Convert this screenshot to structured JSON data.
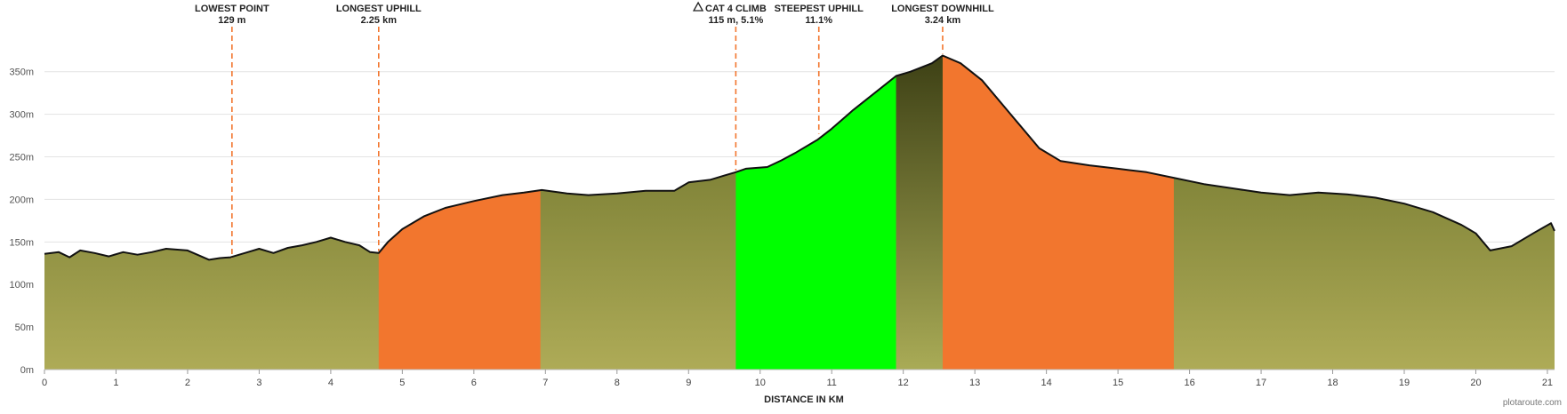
{
  "chart_data": {
    "type": "area",
    "xlabel": "DISTANCE IN KM",
    "ylabel": "",
    "xlim": [
      0,
      21.1
    ],
    "ylim": [
      0,
      380
    ],
    "x_ticks": [
      0,
      1,
      2,
      3,
      4,
      5,
      6,
      7,
      8,
      9,
      10,
      11,
      12,
      13,
      14,
      15,
      16,
      17,
      18,
      19,
      20,
      21
    ],
    "y_ticks": [
      {
        "value": 0,
        "label": "0m"
      },
      {
        "value": 50,
        "label": "50m"
      },
      {
        "value": 100,
        "label": "100m"
      },
      {
        "value": 150,
        "label": "150m"
      },
      {
        "value": 200,
        "label": "200m"
      },
      {
        "value": 250,
        "label": "250m"
      },
      {
        "value": 300,
        "label": "300m"
      },
      {
        "value": 350,
        "label": "350m"
      }
    ],
    "grid": true,
    "profile": {
      "x": [
        0,
        0.2,
        0.35,
        0.5,
        0.7,
        0.9,
        1.1,
        1.3,
        1.5,
        1.7,
        2.0,
        2.3,
        2.45,
        2.6,
        2.8,
        3.0,
        3.2,
        3.4,
        3.6,
        3.8,
        4.0,
        4.2,
        4.4,
        4.55,
        4.67,
        4.8,
        5.0,
        5.3,
        5.6,
        6.0,
        6.4,
        6.7,
        6.95,
        7.3,
        7.6,
        8.0,
        8.4,
        8.8,
        9.0,
        9.3,
        9.5,
        9.66,
        9.8,
        10.1,
        10.3,
        10.5,
        10.8,
        11.0,
        11.3,
        11.6,
        11.9,
        12.1,
        12.4,
        12.55,
        12.8,
        13.1,
        13.5,
        13.9,
        14.2,
        14.6,
        15.0,
        15.4,
        15.8,
        16.2,
        16.6,
        17.0,
        17.4,
        17.8,
        18.2,
        18.6,
        19.0,
        19.4,
        19.8,
        20.0,
        20.2,
        20.5,
        20.8,
        21.05,
        21.1
      ],
      "y": [
        136,
        138,
        132,
        140,
        137,
        133,
        138,
        135,
        138,
        142,
        140,
        129,
        131,
        132,
        137,
        142,
        137,
        143,
        146,
        150,
        155,
        150,
        146,
        138,
        137,
        150,
        165,
        180,
        190,
        198,
        205,
        208,
        211,
        207,
        205,
        207,
        210,
        210,
        220,
        223,
        228,
        232,
        236,
        238,
        246,
        255,
        270,
        283,
        305,
        325,
        345,
        350,
        360,
        369,
        360,
        340,
        300,
        260,
        245,
        240,
        236,
        232,
        225,
        218,
        213,
        208,
        205,
        208,
        206,
        202,
        195,
        185,
        170,
        160,
        140,
        145,
        160,
        172,
        163
      ]
    },
    "segments": [
      {
        "name": "Longest Uphill",
        "from": 4.67,
        "to": 6.93,
        "color": "#f2762e"
      },
      {
        "name": "Steepest Uphill",
        "from": 9.66,
        "to": 11.9,
        "color": "#00ff00"
      },
      {
        "name": "Longest Downhill",
        "from": 12.55,
        "to": 15.78,
        "color": "#f2762e"
      }
    ],
    "summit_band": {
      "from": 11.9,
      "to": 12.55,
      "color_top": "#3a3d13",
      "color_bottom": "#a9ab56"
    },
    "base_gradient": {
      "top": "#646b25",
      "bottom": "#aeab57"
    },
    "marker_color": "#f2762e",
    "markers": [
      {
        "x": 2.62,
        "y": 129,
        "label1": "LOWEST POINT",
        "label2": "129 m",
        "icon": ""
      },
      {
        "x": 4.67,
        "y": 137,
        "label1": "LONGEST UPHILL",
        "label2": "2.25 km",
        "icon": ""
      },
      {
        "x": 9.66,
        "y": 232,
        "label1": "CAT 4 CLIMB",
        "label2": "115 m, 5.1%",
        "icon": "mountain-icon"
      },
      {
        "x": 10.82,
        "y": 275,
        "label1": "STEEPEST UPHILL",
        "label2": "11.1%",
        "icon": ""
      },
      {
        "x": 12.55,
        "y": 369,
        "label1": "LONGEST DOWNHILL",
        "label2": "3.24 km",
        "icon": ""
      }
    ],
    "credit": "plotaroute.com"
  }
}
